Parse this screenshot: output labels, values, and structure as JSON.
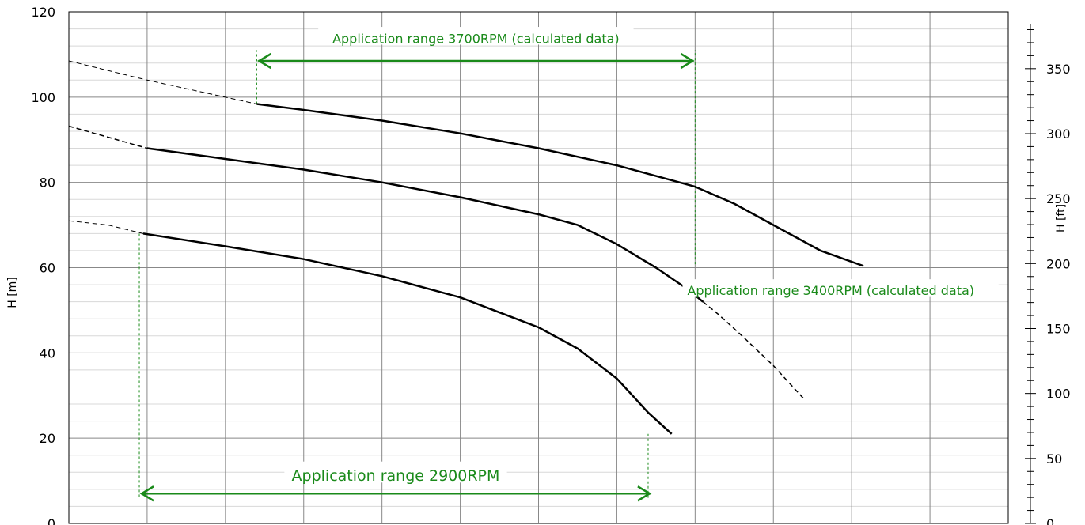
{
  "chart_data": {
    "type": "line",
    "title": "",
    "xlabel": "",
    "ylabel": "H [m]",
    "ylabel_right": "H [ft]",
    "ylim": [
      0,
      120
    ],
    "yticks": [
      0,
      20,
      40,
      60,
      80,
      100,
      120
    ],
    "ylim_right": [
      0,
      393.7
    ],
    "yticks_right": [
      0,
      50,
      100,
      150,
      200,
      250,
      300,
      350
    ],
    "x_gridlines": 12,
    "grid": true,
    "colors": {
      "curve": "#000000",
      "guide": "#888888",
      "annotation": "#1a8a1a",
      "grid": "#888888",
      "minor_grid": "#d8d8d8"
    },
    "series": [
      {
        "speed_rpm": 3700,
        "points": [
          [
            2.4,
            98.4
          ],
          [
            3,
            97
          ],
          [
            4,
            94.5
          ],
          [
            5,
            91.5
          ],
          [
            6,
            88
          ],
          [
            7,
            84
          ],
          [
            8,
            79
          ],
          [
            8.5,
            75
          ],
          [
            9,
            70
          ],
          [
            9.6,
            64
          ],
          [
            10.15,
            60.4
          ]
        ],
        "extrapolated": [
          [
            0,
            108.5
          ],
          [
            1,
            104
          ],
          [
            1.5,
            102
          ],
          [
            2.4,
            98.4
          ]
        ]
      },
      {
        "speed_rpm": 3400,
        "points": [
          [
            1,
            88
          ],
          [
            2,
            85.5
          ],
          [
            3,
            83
          ],
          [
            4,
            80
          ],
          [
            5,
            76.5
          ],
          [
            6,
            72.5
          ],
          [
            6.5,
            70
          ],
          [
            7,
            65.5
          ],
          [
            7.5,
            60
          ],
          [
            7.9,
            55
          ],
          [
            8.1,
            52
          ]
        ],
        "extrapolated_left": [
          [
            0,
            93.2
          ],
          [
            1,
            88
          ]
        ],
        "extrapolated_right": [
          [
            8.1,
            52
          ],
          [
            8.3,
            49
          ],
          [
            8.6,
            44
          ],
          [
            9,
            37
          ],
          [
            9.4,
            29
          ]
        ]
      },
      {
        "speed_rpm": 2900,
        "points": [
          [
            0.95,
            68
          ],
          [
            2,
            65
          ],
          [
            3,
            62
          ],
          [
            4,
            58
          ],
          [
            5,
            53
          ],
          [
            6,
            46
          ],
          [
            6.5,
            41
          ],
          [
            7,
            34
          ],
          [
            7.4,
            26
          ],
          [
            7.7,
            21
          ]
        ],
        "extrapolated": [
          [
            0,
            71
          ],
          [
            0.5,
            70
          ],
          [
            0.95,
            68
          ]
        ]
      }
    ],
    "annotations": [
      {
        "text": "Application range 3700RPM (calculated data)",
        "x_range": [
          2.4,
          8.0
        ],
        "y": 108.5,
        "label_y": 113.5,
        "arrow": true
      },
      {
        "text": "Application range 3400RPM (calculated data)",
        "x": 7.9,
        "y": 54.5,
        "arrow": false
      },
      {
        "text": "Application range 2900RPM",
        "x_range": [
          0.9,
          7.45
        ],
        "y": 7,
        "label_y": 11,
        "arrow": true
      }
    ],
    "range_guides": [
      {
        "x": 2.4,
        "y_from": 98.4,
        "y_to": 111
      },
      {
        "x": 8.0,
        "y_from": 60.8,
        "y_to": 111
      },
      {
        "x": 0.9,
        "y_from": 68,
        "y_to": 6
      },
      {
        "x": 7.4,
        "y_from": 21,
        "y_to": 6
      }
    ]
  }
}
